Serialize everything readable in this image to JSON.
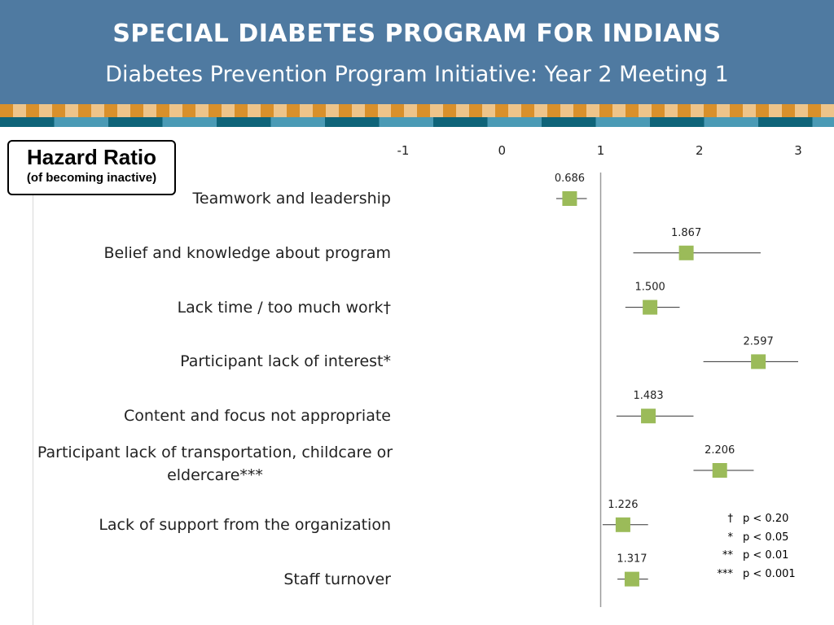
{
  "header": {
    "title": "SPECIAL DIABETES PROGRAM FOR INDIANS",
    "subtitle": "Diabetes Prevention Program Initiative:  Year 2 Meeting 1"
  },
  "hazard_box": {
    "title": "Hazard Ratio",
    "subtitle": "(of becoming inactive)"
  },
  "colors": {
    "header_bg": "#4f7aa1",
    "marker": "#9bbb59",
    "band_orange": "#d9902b",
    "band_light": "#eec48a",
    "band_teal_dark": "#0f6479",
    "band_teal_light": "#4a9ab5"
  },
  "legend": [
    {
      "symbol": "†",
      "text": "p < 0.20"
    },
    {
      "symbol": "*",
      "text": "p < 0.05"
    },
    {
      "symbol": "**",
      "text": "p < 0.01"
    },
    {
      "symbol": "***",
      "text": "p < 0.001"
    }
  ],
  "chart_data": {
    "type": "scatter",
    "subtype": "forest-plot",
    "xlim": [
      -1,
      3
    ],
    "x_ticks": [
      "-1",
      "0",
      "1",
      "2",
      "3"
    ],
    "reference_line": 1,
    "categories": [
      "Teamwork and leadership",
      "Belief and knowledge about program",
      "Lack time / too much work†",
      "Participant lack of interest*",
      "Content and focus not appropriate",
      "Participant lack of transportation, childcare or eldercare***",
      "Lack of support from the organization",
      "Staff turnover"
    ],
    "values": [
      0.686,
      1.867,
      1.5,
      2.597,
      1.483,
      2.206,
      1.226,
      1.317
    ],
    "value_labels": [
      "0.686",
      "1.867",
      "1.500",
      "2.597",
      "1.483",
      "2.206",
      "1.226",
      "1.317"
    ],
    "ci_low": [
      0.55,
      1.33,
      1.25,
      2.04,
      1.16,
      1.94,
      1.02,
      1.17
    ],
    "ci_high": [
      0.86,
      2.62,
      1.8,
      3.0,
      1.94,
      2.55,
      1.48,
      1.48
    ]
  }
}
